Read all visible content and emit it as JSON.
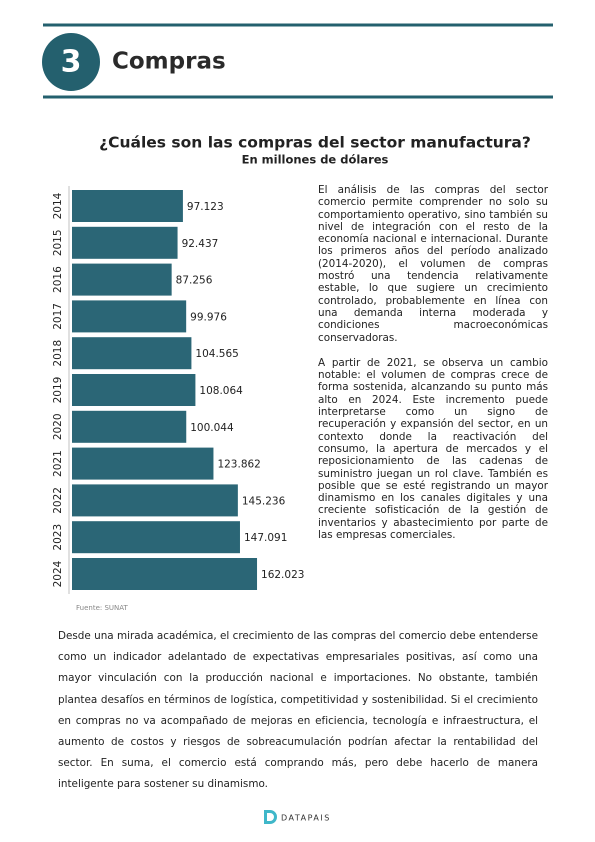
{
  "header": {
    "number": "3",
    "title": "Compras"
  },
  "chart_data": {
    "type": "barh",
    "title": "¿Cuáles son las compras del sector manufactura?",
    "subtitle": "En millones de dólares",
    "categories": [
      "2014",
      "2015",
      "2016",
      "2017",
      "2018",
      "2019",
      "2020",
      "2021",
      "2022",
      "2023",
      "2024"
    ],
    "values": [
      97123,
      92437,
      87256,
      99976,
      104565,
      108064,
      100044,
      123862,
      145236,
      147091,
      162023
    ],
    "value_labels": [
      "97.123",
      "92.437",
      "87.256",
      "99.976",
      "104.565",
      "108.064",
      "100.044",
      "123.862",
      "145.236",
      "147.091",
      "162.023"
    ],
    "color": "#2b6676",
    "source": "Fuente: SUNAT"
  },
  "side_paragraphs": [
    "El análisis de las compras del sector comercio permite comprender no solo su comportamiento operativo, sino también su nivel de integración con el resto de la economía nacional e internacional. Durante los primeros años del período analizado (2014-2020), el volumen de compras mostró una tendencia relativamente estable, lo que sugiere un crecimiento controlado, probablemente en línea con una demanda interna moderada y condiciones macroeconómicas conservadoras.",
    "A partir de 2021, se observa un cambio notable: el volumen de compras crece de forma sostenida, alcanzando su punto más alto en 2024. Este incremento puede interpretarse como un signo de recuperación y expansión del sector, en un contexto donde la reactivación del consumo, la apertura de mercados y el reposicionamiento de las cadenas de suministro juegan un rol clave. También es posible que se esté registrando un mayor dinamismo en los canales digitales y una creciente sofisticación de la gestión de inventarios y abastecimiento por parte de las empresas comerciales."
  ],
  "body_paragraph": "Desde una mirada académica, el crecimiento de las compras del comercio debe entenderse como un indicador adelantado de expectativas empresariales positivas, así como una mayor vinculación con la producción nacional e importaciones. No obstante, también plantea desafíos en términos de logística, competitividad y sostenibilidad. Si el crecimiento en compras no va acompañado de mejoras en eficiencia, tecnología e infraestructura, el aumento de costos y riesgos de sobreacumulación podrían afectar la rentabilidad del sector. En suma, el comercio está comprando más, pero debe hacerlo de manera inteligente para sostener su dinamismo.",
  "footer": {
    "brand": "DATAPAIS"
  }
}
